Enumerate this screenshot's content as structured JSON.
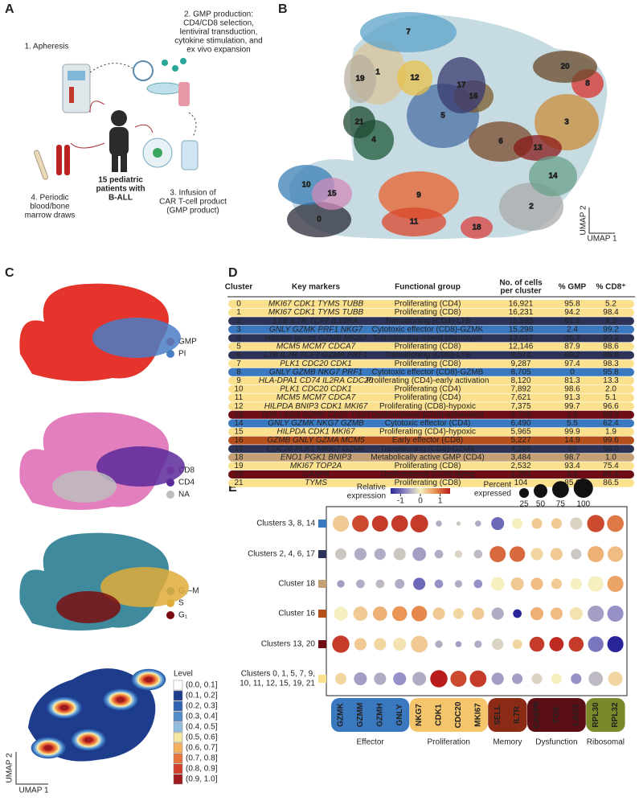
{
  "panel_a": {
    "letter": "A",
    "step1": [
      "1. Apheresis"
    ],
    "step2": [
      "2. GMP production:",
      "CD4/CD8 selection,",
      "lentiviral transduction,",
      "cytokine stimulation, and",
      "ex vivo expansion"
    ],
    "step3": [
      "3. Infusion of",
      "CAR T-cell product",
      "(GMP product)"
    ],
    "step4": [
      "4. Periodic",
      "blood/bone",
      "marrow draws"
    ],
    "patients": [
      "15 pediatric",
      "patients with",
      "B-ALL"
    ]
  },
  "panel_b": {
    "letter": "B",
    "clusters": [
      "0",
      "1",
      "2",
      "3",
      "4",
      "5",
      "6",
      "7",
      "8",
      "9",
      "10",
      "11",
      "12",
      "13",
      "14",
      "15",
      "16",
      "17",
      "18",
      "19",
      "20",
      "21"
    ],
    "x_label": "UMAP 1",
    "y_label": "UMAP 2"
  },
  "panel_c": {
    "letter": "C",
    "plots": [
      {
        "legend": [
          {
            "name": "GMP",
            "color": "#e5342c"
          },
          {
            "name": "PI",
            "color": "#4a7fc6"
          }
        ]
      },
      {
        "legend": [
          {
            "name": "CD8",
            "color": "#e37fbe"
          },
          {
            "name": "CD4",
            "color": "#5b2a9a"
          },
          {
            "name": "NA",
            "color": "#bdbdbd"
          }
        ]
      },
      {
        "legend": [
          {
            "name": "G₂–M",
            "color": "#3f8a9c"
          },
          {
            "name": "S",
            "color": "#e0ac3a"
          },
          {
            "name": "G₁",
            "color": "#7a0d12"
          }
        ]
      }
    ],
    "density": {
      "title": "Level",
      "levels": [
        {
          "label": "(0.0, 0.1]",
          "color": "#ffffff"
        },
        {
          "label": "(0.1, 0.2]",
          "color": "#1d3c8c"
        },
        {
          "label": "(0.2, 0.3]",
          "color": "#2f63b0"
        },
        {
          "label": "(0.3, 0.4]",
          "color": "#528bc8"
        },
        {
          "label": "(0.4, 0.5]",
          "color": "#92bde0"
        },
        {
          "label": "(0.5, 0.6]",
          "color": "#f6e6a4"
        },
        {
          "label": "(0.6, 0.7]",
          "color": "#f3b15f"
        },
        {
          "label": "(0.7, 0.8]",
          "color": "#e8763e"
        },
        {
          "label": "(0.8, 0.9]",
          "color": "#d23f2b"
        },
        {
          "label": "(0.9, 1.0]",
          "color": "#9f1a1e"
        }
      ],
      "x_label": "UMAP 1",
      "y_label": "UMAP 2"
    }
  },
  "panel_d": {
    "letter": "D",
    "header": [
      [
        "Cluster"
      ],
      [
        "Key markers"
      ],
      [
        "Functional group"
      ],
      [
        "No. of cells",
        "per cluster"
      ],
      [
        "% GMP"
      ],
      [
        "% CD8⁺"
      ]
    ],
    "rows": [
      {
        "color": "#fbe08d",
        "cells": [
          "0",
          "MKI67 CDK1 TYMS TUBB",
          "Proliferating (CD4)",
          "16,921",
          "95.8",
          "5.2"
        ]
      },
      {
        "color": "#fbe08d",
        "cells": [
          "1",
          "MKI67 CDK1 TYMS TUBB",
          "Proliferating (CD8)",
          "16,231",
          "94.2",
          "98.4"
        ]
      },
      {
        "color": "#2d3357",
        "cells": [
          "2",
          "LTB IL7R TCF7 IL10RA",
          "Transitioning (CD4)-LTB",
          "15,535",
          "61.4",
          "4.3"
        ]
      },
      {
        "color": "#3a78c0",
        "cells": [
          "3",
          "GNLY GZMK PRF1 NKG7",
          "Cytotoxic effector (CD8)-GZMK",
          "15,298",
          "2.4",
          "99.2"
        ]
      },
      {
        "color": "#2d3357",
        "cells": [
          "4",
          "Histone genes GZMB MKI67",
          "Transitioning-mixed phenotype",
          "13,017",
          "46.7",
          "90.2"
        ]
      },
      {
        "color": "#fbe08d",
        "cells": [
          "5",
          "MCM5 MCM7 CDCA7",
          "Proliferating (CD8)",
          "12,146",
          "87.9",
          "98.6"
        ]
      },
      {
        "color": "#2d3357",
        "cells": [
          "6",
          "LTB IL7R TCF7 GZMA PRF1",
          "Transitioning (CD8)-LTB",
          "9,572",
          "69.2",
          "95.8"
        ]
      },
      {
        "color": "#fbe08d",
        "cells": [
          "7",
          "PLK1 CDC20 CDK1",
          "Proliferating (CD8)",
          "9,287",
          "97.4",
          "98.3"
        ]
      },
      {
        "color": "#3a78c0",
        "cells": [
          "8",
          "GNLY GZMB NKG7 PRF1",
          "Cytotoxic effector (CD8)-GZMB",
          "8,705",
          "0",
          "95.8"
        ]
      },
      {
        "color": "#fbe08d",
        "cells": [
          "9",
          "HLA-DPA1 CD74 IL2RA CDC20",
          "Proliferating (CD4)-early activation",
          "8,120",
          "81.3",
          "13.3"
        ]
      },
      {
        "color": "#fbe08d",
        "cells": [
          "10",
          "PLK1 CDC20 CDK1",
          "Proliferating (CD4)",
          "7,892",
          "98.6",
          "2.0"
        ]
      },
      {
        "color": "#fbe08d",
        "cells": [
          "11",
          "MCM5 MCM7 CDCA7",
          "Proliferating (CD4)",
          "7,621",
          "91.3",
          "5.1"
        ]
      },
      {
        "color": "#fbe08d",
        "cells": [
          "12",
          "HILPDA BNIP3 CDK1 MKI67",
          "Proliferating (CD8)-hypoxic",
          "7,375",
          "99.7",
          "96.6"
        ]
      },
      {
        "color": "#6f0d16",
        "cells": [
          "13",
          "TOX LAG3 GZMK CD27 TIGIT",
          "Dysfunctional (CD8)-exhausted",
          "6,728",
          "2.9",
          "99.3"
        ]
      },
      {
        "color": "#3a78c0",
        "cells": [
          "14",
          "GNLY GZMK NKG7 GZMB",
          "Cytotoxic effector (CD4)",
          "6,490",
          "5.5",
          "62.4"
        ]
      },
      {
        "color": "#fbe08d",
        "cells": [
          "15",
          "HILPDA CDK1 MKI67",
          "Proliferating (CD4)-hypoxic",
          "5,965",
          "99.9",
          "1.9"
        ]
      },
      {
        "color": "#b5501d",
        "cells": [
          "16",
          "GZMB GNLY GZMA MCM5",
          "Early effector (CD8)",
          "5,227",
          "14.9",
          "99.6"
        ]
      },
      {
        "color": "#2d3357",
        "cells": [
          "17",
          "CDC20 PLK1 MKI67 GZMK",
          "Transitioning (CD8)-GZMK",
          "4,288",
          "68",
          "98.0"
        ]
      },
      {
        "color": "#c4a074",
        "cells": [
          "18",
          "ENO1 PGK1 BNIP3",
          "Metabolically active GMP (CD4)",
          "3,484",
          "98.7",
          "1.0"
        ]
      },
      {
        "color": "#fbe08d",
        "cells": [
          "19",
          "MKI67 TOP2A",
          "Proliferating (CD8)",
          "2,532",
          "93.4",
          "75.4"
        ]
      },
      {
        "color": "#6f0d16",
        "cells": [
          "20",
          "CASP8",
          "Dysfunctional (CD8)-dying",
          "2,253",
          "5.5",
          "87.4"
        ]
      },
      {
        "color": "#fbe08d",
        "cells": [
          "21",
          "TYMS",
          "Proliferating (CD8)",
          "104",
          "85.6",
          "86.5"
        ]
      }
    ]
  },
  "panel_e": {
    "letter": "E",
    "type": "dot",
    "color_legend": {
      "title": [
        "Relative",
        "expression"
      ],
      "lim": [
        -1.5,
        1.5
      ],
      "ticks": [
        -1,
        0,
        1
      ]
    },
    "size_legend": {
      "title": [
        "Percent",
        "expressed"
      ],
      "values": [
        25,
        50,
        75,
        100
      ]
    },
    "rows": [
      {
        "label": [
          "Clusters 3, 8, 14"
        ],
        "color": "#3a78c0",
        "expression": [
          0.3,
          1.2,
          1.3,
          1.3,
          1.3,
          -0.5,
          -0.3,
          -0.5,
          -1,
          0,
          0.3,
          0.3,
          -0.2,
          1.2,
          0.9
        ],
        "percent": [
          70,
          75,
          70,
          75,
          85,
          10,
          5,
          10,
          45,
          30,
          30,
          30,
          40,
          80,
          75
        ]
      },
      {
        "label": [
          "Clusters 2, 4, 6, 17"
        ],
        "color": "#2d3357",
        "expression": [
          -0.3,
          -0.5,
          -0.5,
          -0.3,
          -0.6,
          -0.5,
          -0.2,
          -0.4,
          1,
          1,
          0.2,
          0.3,
          -0.3,
          0.5,
          0.4
        ],
        "percent": [
          35,
          40,
          35,
          40,
          50,
          20,
          15,
          20,
          70,
          65,
          40,
          40,
          30,
          70,
          65
        ]
      },
      {
        "label": [
          "Cluster 18"
        ],
        "color": "#c4a074",
        "expression": [
          -0.6,
          -0.5,
          -0.4,
          -0.5,
          -1,
          -0.7,
          -0.5,
          -0.7,
          0,
          0.3,
          0.4,
          0.3,
          0,
          0,
          0.6
        ],
        "percent": [
          15,
          20,
          20,
          25,
          40,
          20,
          15,
          20,
          50,
          45,
          40,
          30,
          35,
          65,
          70
        ]
      },
      {
        "label": [
          "Cluster 16"
        ],
        "color": "#b5501d",
        "expression": [
          0,
          0.3,
          0.5,
          0.7,
          0.8,
          0.3,
          0.2,
          0.3,
          -0.5,
          -1.5,
          0.5,
          0.4,
          0.1,
          -0.6,
          -0.7
        ],
        "percent": [
          50,
          55,
          55,
          60,
          65,
          40,
          30,
          40,
          40,
          20,
          45,
          40,
          45,
          70,
          70
        ]
      },
      {
        "label": [
          "Clusters 13, 20"
        ],
        "color": "#6f0d16",
        "expression": [
          1.3,
          0.3,
          0.2,
          0.1,
          0.3,
          -0.5,
          -0.6,
          -0.5,
          -0.2,
          0.2,
          1.3,
          1.4,
          1.3,
          -0.9,
          -1.5
        ],
        "percent": [
          80,
          40,
          40,
          45,
          75,
          15,
          10,
          15,
          35,
          25,
          60,
          55,
          60,
          65,
          70
        ]
      },
      {
        "label": [
          "Clusters 0, 1, 5, 7, 9,",
          "10, 11, 12, 15, 19, 21"
        ],
        "color": "#fbe08d",
        "expression": [
          0.2,
          -0.6,
          -0.5,
          -0.7,
          -0.5,
          1.5,
          1.2,
          1.3,
          -0.6,
          -0.6,
          -0.2,
          0,
          -0.7,
          -0.4,
          0.2
        ],
        "percent": [
          35,
          45,
          40,
          45,
          50,
          80,
          70,
          75,
          40,
          30,
          30,
          30,
          30,
          55,
          55
        ]
      }
    ],
    "groups": [
      {
        "name": "Effector",
        "color": "#3a78c0",
        "genes": [
          "GZMK",
          "GZMM",
          "GZMH",
          "GNLY"
        ]
      },
      {
        "name": "Proliferation",
        "color": "#f4c56a",
        "genes": [
          "NKG7",
          "CDK1",
          "CDC20",
          "MKI67"
        ]
      },
      {
        "name": "Memory",
        "color": "#8b2a15",
        "genes": [
          "SELL",
          "IL7R"
        ]
      },
      {
        "name": "Dysfunction",
        "color": "#5a0f15",
        "genes": [
          "CASP8",
          "TOX",
          "LAG3"
        ]
      },
      {
        "name": "Ribosomal",
        "color": "#7a8a2a",
        "genes": [
          "RPL30",
          "RPL32"
        ]
      }
    ]
  }
}
